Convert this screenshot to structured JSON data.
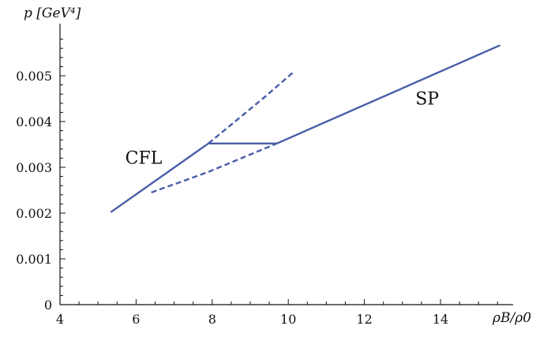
{
  "chart_data": {
    "type": "line",
    "title": "",
    "xlabel": "ρB/ρ0",
    "ylabel": "p [GeV⁴]",
    "xlim": [
      4,
      16
    ],
    "ylim": [
      0,
      0.0059
    ],
    "x_ticks": [
      4,
      6,
      8,
      10,
      12,
      14
    ],
    "x_tick_labels": [
      "4",
      "6",
      "8",
      "10",
      "12",
      "14"
    ],
    "y_ticks": [
      0,
      0.001,
      0.002,
      0.003,
      0.004,
      0.005
    ],
    "y_tick_labels": [
      "0",
      "0.001",
      "0.002",
      "0.003",
      "0.004",
      "0.005"
    ],
    "grid": false,
    "series": [
      {
        "style": "solid",
        "color": "#4a5ea8",
        "points": [
          [
            5.35,
            0.00203
          ],
          [
            7.9,
            0.00352
          ]
        ]
      },
      {
        "style": "solid",
        "color": "#4a5ea8",
        "points": [
          [
            7.9,
            0.00352
          ],
          [
            9.7,
            0.00352
          ]
        ]
      },
      {
        "style": "solid",
        "color": "#4a5ea8",
        "points": [
          [
            9.7,
            0.00352
          ],
          [
            15.55,
            0.00566
          ]
        ]
      },
      {
        "style": "dashed",
        "color": "#4a5ea8",
        "points": [
          [
            7.9,
            0.00352
          ],
          [
            8.6,
            0.004
          ],
          [
            9.4,
            0.00455
          ],
          [
            10.15,
            0.00509
          ]
        ]
      },
      {
        "style": "dashed",
        "color": "#4a5ea8",
        "points": [
          [
            6.4,
            0.00245
          ],
          [
            7.9,
            0.0029
          ],
          [
            9.7,
            0.00352
          ]
        ]
      }
    ],
    "annotations": [
      {
        "text": "CFL",
        "x": 6.2,
        "y": 0.00308
      },
      {
        "text": "SP",
        "x": 13.65,
        "y": 0.00437
      }
    ]
  }
}
